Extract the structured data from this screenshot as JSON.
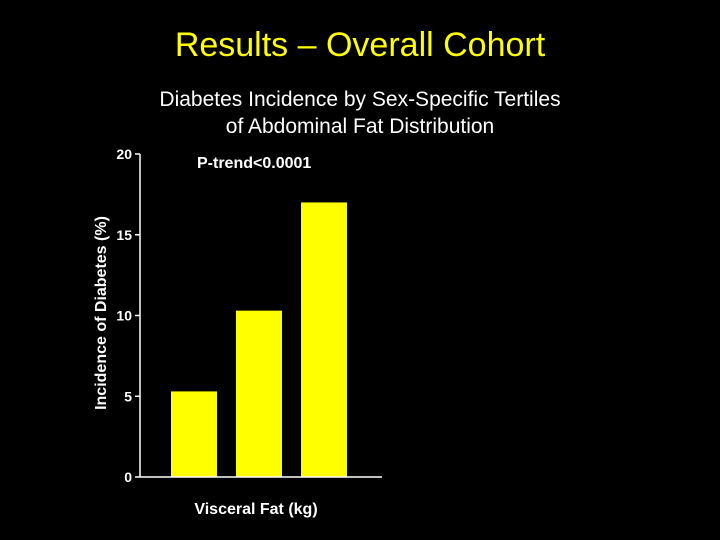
{
  "slide": {
    "title": "Results – Overall Cohort",
    "subtitle_line1": "Diabetes Incidence by Sex-Specific Tertiles",
    "subtitle_line2": "of Abdominal Fat Distribution"
  },
  "colors": {
    "background": "#000000",
    "title": "#ffff00",
    "bar": "#ffff00",
    "text": "#ffffff"
  },
  "chart_data": {
    "type": "bar",
    "title": "",
    "xlabel": "Visceral Fat (kg)",
    "ylabel": "Incidence of Diabetes (%)",
    "ylim": [
      0,
      20
    ],
    "yticks": [
      0,
      5,
      10,
      15,
      20
    ],
    "categories": [
      "",
      "",
      ""
    ],
    "values": [
      5.3,
      10.3,
      17.0
    ],
    "annotation": "P-trend<0.0001",
    "grid": false,
    "legend": "none"
  }
}
